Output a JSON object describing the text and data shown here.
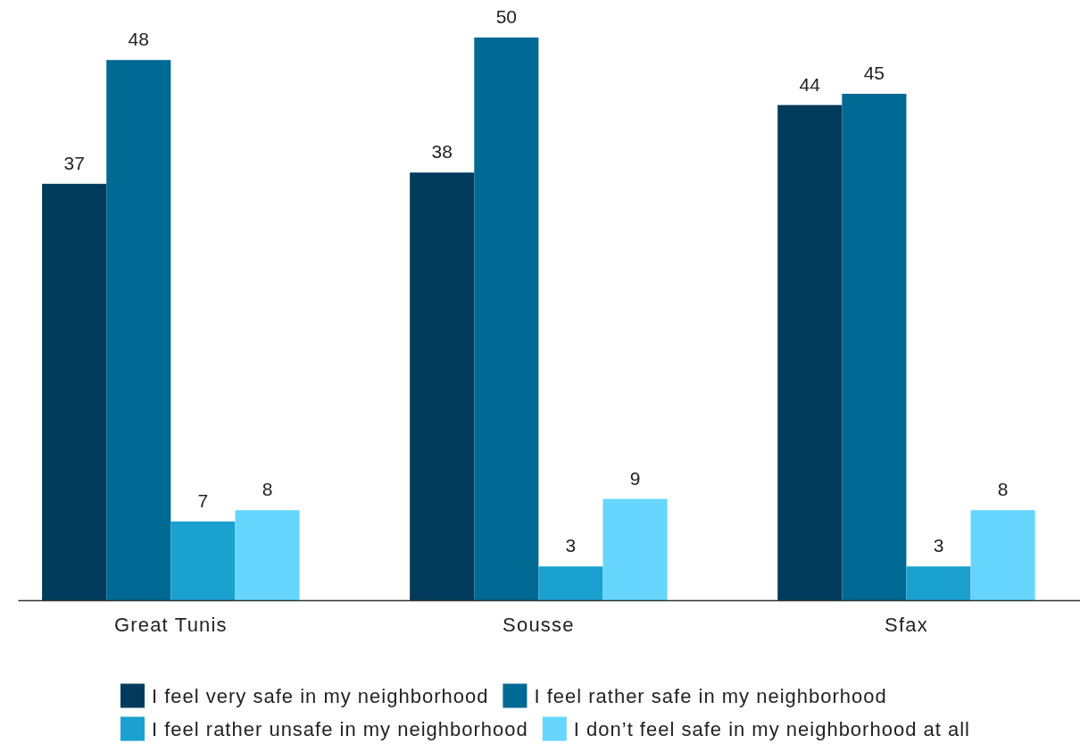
{
  "chart_data": {
    "type": "bar",
    "categories": [
      "Great Tunis",
      "Sousse",
      "Sfax"
    ],
    "series": [
      {
        "name": "I feel very safe in my neighborhood",
        "color": "#003b5c",
        "values": [
          37,
          38,
          44
        ]
      },
      {
        "name": "I feel rather safe in my neighborhood",
        "color": "#006994",
        "values": [
          48,
          50,
          45
        ]
      },
      {
        "name": "I feel rather unsafe in my neighborhood",
        "color": "#1aa1cf",
        "values": [
          7,
          3,
          3
        ]
      },
      {
        "name": "I don’t feel safe in my neighborhood at all",
        "color": "#66d6ff",
        "values": [
          8,
          9,
          8
        ]
      }
    ],
    "tick_labels": "x",
    "data_labels": true,
    "legend": "bottom"
  }
}
